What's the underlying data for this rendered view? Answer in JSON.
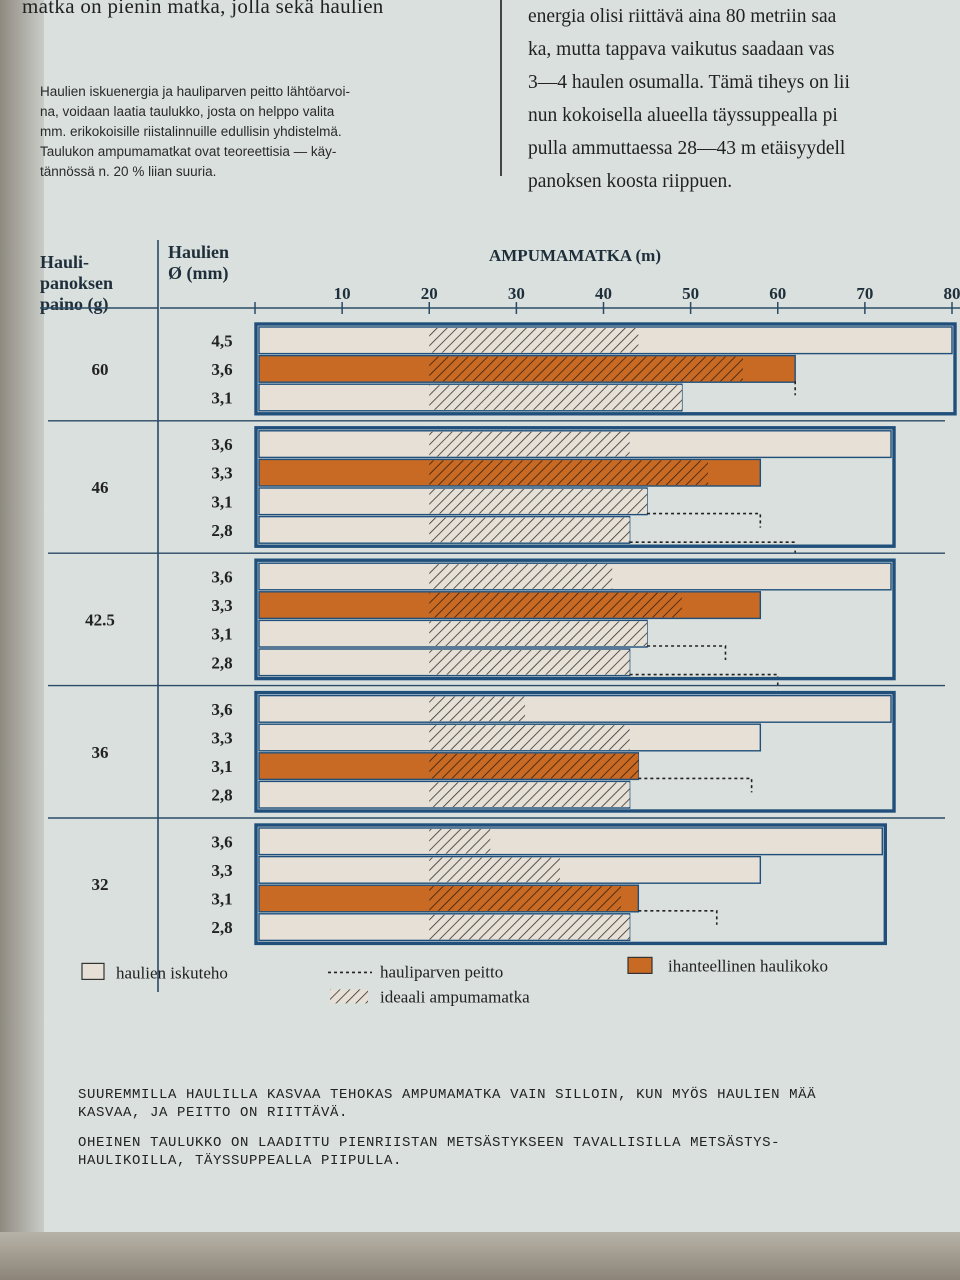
{
  "text": {
    "left_top": "matka on pienin matka, jolla sekä haulien",
    "caption": "Haulien iskuenergia ja hauliparven peitto lähtöarvoi-\nna, voidaan laatia taulukko, josta on helppo valita\nmm. erikokoisille riistalinnuille edullisin yhdistelmä.\nTaulukon ampumamatkat ovat teoreettisia — käy-\ntännössä n. 20 % liian suuria.",
    "right_top": "energia olisi riittävä aina 80 metriin saa\nka, mutta tappava vaikutus saadaan vas\n3—4 haulen osumalla. Tämä tiheys on lii\nnun kokoisella alueella täyssuppealla pi\npulla ammuttaessa 28—43 m etäisyydell\npanoksen koosta riippuen.",
    "note1": "SUUREMMILLA HAULILLA KASVAA TEHOKAS AMPUMAMATKA VAIN SILLOIN, KUN MYÖS HAULIEN MÄÄ\nKASVAA, JA PEITTO ON RIITTÄVÄ.",
    "note2": "OHEINEN TAULUKKO ON LAADITTU PIENRIISTAN METSÄSTYKSEEN TAVALLISILLA METSÄSTYS-\nHAULIKOILLA, TÄYSSUPPEALLA PIIPULLA."
  },
  "chart_data": {
    "type": "bar",
    "title": "AMPUMAMATKA (m)",
    "col1_header": [
      "Hauli-",
      "panoksen",
      "paino (g)"
    ],
    "col2_header": [
      "Haulien",
      "Ø (mm)"
    ],
    "x_ticks": [
      10,
      20,
      30,
      40,
      50,
      60,
      70,
      80
    ],
    "x_tick_labels": [
      "10",
      "20",
      "30",
      "40",
      "50",
      "60",
      "70",
      "80"
    ],
    "xlim": [
      0,
      80
    ],
    "groups": [
      {
        "weight": "60",
        "rows": [
          {
            "d": "4,5",
            "impact": 80,
            "ideal": [
              20,
              44
            ],
            "ideal_shot": false
          },
          {
            "d": "3,6",
            "impact": 62,
            "ideal": [
              20,
              56
            ],
            "cover": 62,
            "ideal_shot": true
          },
          {
            "d": "3,1",
            "impact": 49,
            "ideal": [
              20,
              49
            ],
            "ideal_shot": false
          }
        ]
      },
      {
        "weight": "46",
        "rows": [
          {
            "d": "3,6",
            "impact": 73,
            "ideal": [
              20,
              43
            ],
            "ideal_shot": false
          },
          {
            "d": "3,3",
            "impact": 58,
            "ideal": [
              20,
              52
            ],
            "ideal_shot": true
          },
          {
            "d": "3,1",
            "impact": 45,
            "ideal": [
              20,
              45
            ],
            "cover": 58,
            "ideal_shot": false
          },
          {
            "d": "2,8",
            "impact": 43,
            "ideal": [
              20,
              43
            ],
            "cover": 62,
            "ideal_shot": false
          }
        ]
      },
      {
        "weight": "42.5",
        "rows": [
          {
            "d": "3,6",
            "impact": 73,
            "ideal": [
              20,
              41
            ],
            "ideal_shot": false
          },
          {
            "d": "3,3",
            "impact": 58,
            "ideal": [
              20,
              49
            ],
            "ideal_shot": true
          },
          {
            "d": "3,1",
            "impact": 45,
            "ideal": [
              20,
              45
            ],
            "cover": 54,
            "ideal_shot": false
          },
          {
            "d": "2,8",
            "impact": 43,
            "ideal": [
              20,
              43
            ],
            "cover": 60,
            "ideal_shot": false
          }
        ]
      },
      {
        "weight": "36",
        "rows": [
          {
            "d": "3,6",
            "impact": 73,
            "ideal": [
              20,
              31
            ],
            "ideal_shot": false
          },
          {
            "d": "3,3",
            "impact": 58,
            "ideal": [
              20,
              43
            ],
            "ideal_shot": false
          },
          {
            "d": "3,1",
            "impact": 44,
            "ideal": [
              20,
              44
            ],
            "cover": 57,
            "ideal_shot": true
          },
          {
            "d": "2,8",
            "impact": 43,
            "ideal": [
              20,
              43
            ],
            "ideal_shot": false
          }
        ]
      },
      {
        "weight": "32",
        "rows": [
          {
            "d": "3,6",
            "impact": 72,
            "ideal": [
              20,
              27
            ],
            "ideal_shot": false
          },
          {
            "d": "3,3",
            "impact": 58,
            "ideal": [
              20,
              35
            ],
            "ideal_shot": false
          },
          {
            "d": "3,1",
            "impact": 44,
            "ideal": [
              20,
              42
            ],
            "cover": 53,
            "ideal_shot": true
          },
          {
            "d": "2,8",
            "impact": 43,
            "ideal": [
              20,
              43
            ],
            "ideal_shot": false
          }
        ]
      }
    ],
    "legend": [
      {
        "key": "impact",
        "label": "haulien iskuteho"
      },
      {
        "key": "cover",
        "label": "hauliparven peitto"
      },
      {
        "key": "ideal_shot",
        "label": "ihanteellinen haulikoko"
      },
      {
        "key": "ideal",
        "label": "ideaali ampumamatka"
      }
    ],
    "colors": {
      "impact": "#e6e0d6",
      "ideal_shot": "#c86a24",
      "border": "#1f4f7a",
      "hatch": "#333333"
    }
  }
}
